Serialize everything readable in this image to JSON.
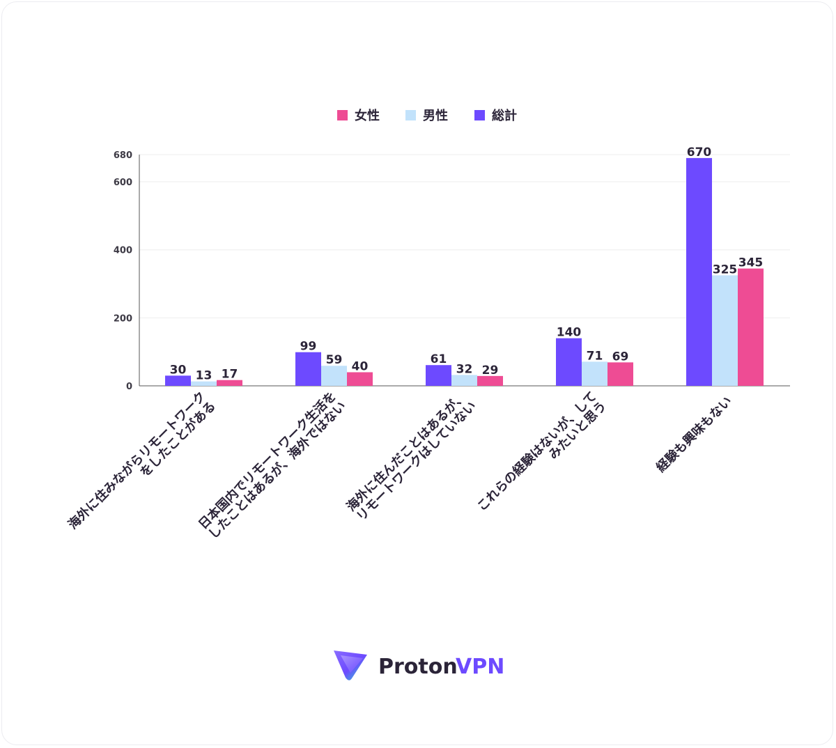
{
  "chart_data": {
    "type": "bar",
    "categories": [
      [
        "海外に住みながらリモートワーク",
        "をしたことがある"
      ],
      [
        "日本国内でリモートワーク生活を",
        "したことはあるが、海外ではない"
      ],
      [
        "海外に住んだことはあるが、",
        "リモートワークはしていない"
      ],
      [
        "これらの経験はないが、して",
        "みたいと思う"
      ],
      [
        "経験も興味もない"
      ]
    ],
    "series": [
      {
        "name": "総計",
        "color": "#6d4aff",
        "values": [
          30,
          99,
          61,
          140,
          670
        ]
      },
      {
        "name": "男性",
        "color": "#c2e2fb",
        "values": [
          13,
          59,
          32,
          71,
          325
        ]
      },
      {
        "name": "女性",
        "color": "#ee4c94",
        "values": [
          17,
          40,
          29,
          69,
          345
        ]
      }
    ],
    "legend_order": [
      "女性",
      "男性",
      "総計"
    ],
    "legend_position": "top-center",
    "y_ticks": [
      0,
      200,
      400,
      600,
      680
    ],
    "ylim": [
      0,
      680
    ],
    "grid": true,
    "title": "",
    "xlabel": "",
    "ylabel": ""
  },
  "brand": {
    "name_part1": "Proton",
    "name_part2": "VPN",
    "logo_icon": "proton-vpn-triangle-icon"
  }
}
